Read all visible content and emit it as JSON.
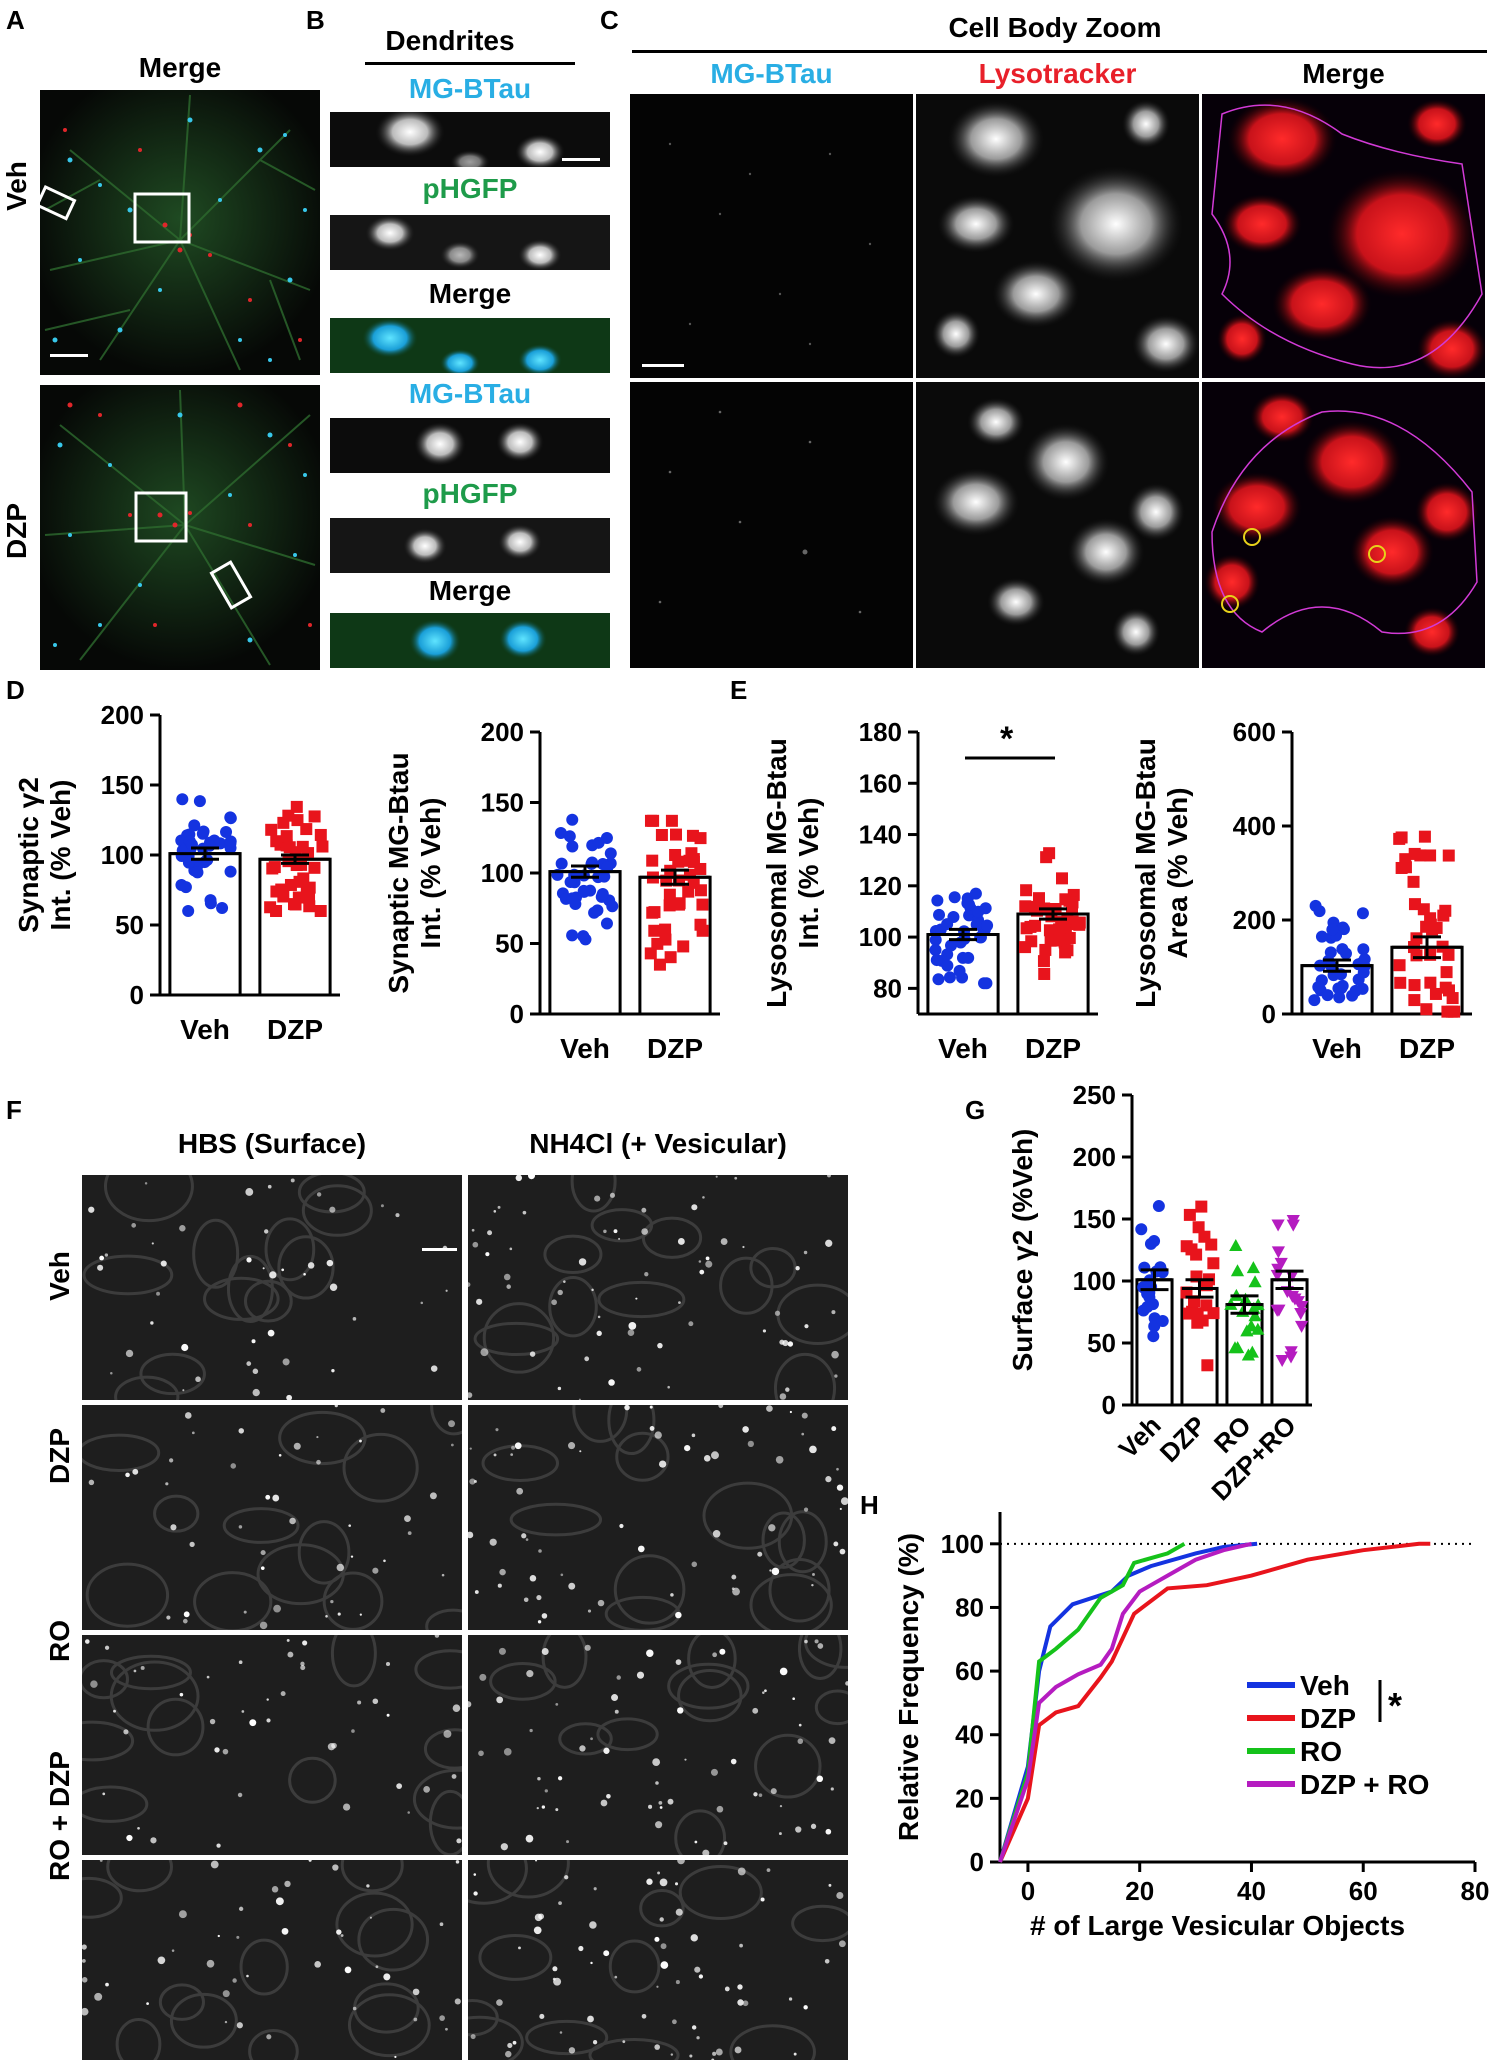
{
  "panel_labels": {
    "A": "A",
    "B": "B",
    "C": "C",
    "D": "D",
    "E": "E",
    "F": "F",
    "G": "G",
    "H": "H"
  },
  "panel_a": {
    "title": "Merge",
    "rows": [
      "Veh",
      "DZP"
    ]
  },
  "panel_b": {
    "title": "Dendrites",
    "channels": [
      "MG-BTau",
      "pHGFP",
      "Merge",
      "MG-BTau",
      "pHGFP",
      "Merge"
    ]
  },
  "panel_c": {
    "title": "Cell Body Zoom",
    "channels": [
      "MG-BTau",
      "Lysotracker",
      "Merge"
    ]
  },
  "panel_f": {
    "columns": [
      "HBS (Surface)",
      "NH4Cl (+ Vesicular)"
    ],
    "rows": [
      "Veh",
      "DZP",
      "RO",
      "RO + DZP"
    ]
  },
  "significance": {
    "e": "*",
    "h_star": "*"
  },
  "chart_data": [
    {
      "id": "D1",
      "type": "bar",
      "categories": [
        "Veh",
        "DZP"
      ],
      "values": [
        101,
        97
      ],
      "sem": [
        4,
        3
      ],
      "ylabel_lines": [
        "Synaptic γ2",
        "Int. (% Veh)"
      ],
      "ylim": [
        0,
        200
      ],
      "yticks": [
        "0",
        "50",
        "100",
        "150",
        "200"
      ],
      "colors": [
        "#1433e0",
        "#e8141c"
      ],
      "marker": [
        "circle",
        "square"
      ]
    },
    {
      "id": "D2",
      "type": "bar",
      "categories": [
        "Veh",
        "DZP"
      ],
      "values": [
        101,
        97
      ],
      "sem": [
        4,
        5
      ],
      "ylabel_lines": [
        "Synaptic MG-Btau",
        "Int. (% Veh)"
      ],
      "ylim": [
        0,
        200
      ],
      "yticks": [
        "0",
        "50",
        "100",
        "150",
        "200"
      ],
      "colors": [
        "#1433e0",
        "#e8141c"
      ],
      "marker": [
        "circle",
        "square"
      ]
    },
    {
      "id": "E1",
      "type": "bar",
      "categories": [
        "Veh",
        "DZP"
      ],
      "values": [
        101,
        109
      ],
      "sem": [
        2,
        2
      ],
      "ylabel_lines": [
        "Lysosomal MG-Btau",
        "Int. (% Veh)"
      ],
      "ylim": [
        70,
        180
      ],
      "yticks": [
        "80",
        "100",
        "120",
        "140",
        "160",
        "180"
      ],
      "colors": [
        "#1433e0",
        "#e8141c"
      ],
      "marker": [
        "circle",
        "square"
      ]
    },
    {
      "id": "E2",
      "type": "bar",
      "categories": [
        "Veh",
        "DZP"
      ],
      "values": [
        103,
        142
      ],
      "sem": [
        12,
        22
      ],
      "ylabel_lines": [
        "Lysosomal MG-Btau",
        "Area (% Veh)"
      ],
      "ylim": [
        0,
        600
      ],
      "yticks": [
        "0",
        "200",
        "400",
        "600"
      ],
      "colors": [
        "#1433e0",
        "#e8141c"
      ],
      "marker": [
        "circle",
        "square"
      ]
    },
    {
      "id": "G",
      "type": "bar",
      "categories": [
        "Veh",
        "DZP",
        "RO",
        "DZP+RO"
      ],
      "values": [
        101,
        94,
        81,
        101
      ],
      "sem": [
        8,
        7,
        7,
        7
      ],
      "ylabel_lines": [
        "Surface γ2 (%Veh)"
      ],
      "ylim": [
        0,
        250
      ],
      "yticks": [
        "0",
        "50",
        "100",
        "150",
        "200",
        "250"
      ],
      "colors": [
        "#1433e0",
        "#e8141c",
        "#15c21a",
        "#b51cc0"
      ],
      "marker": [
        "circle",
        "square",
        "triangle-up",
        "triangle-down"
      ]
    },
    {
      "id": "H",
      "type": "line",
      "xlabel": "# of Large Vesicular Objects",
      "ylabel": "Relative Frequency (%)",
      "xlim": [
        -5,
        80
      ],
      "ylim": [
        0,
        110
      ],
      "xticks": [
        "0",
        "20",
        "40",
        "60",
        "80"
      ],
      "yticks": [
        "0",
        "20",
        "40",
        "60",
        "80",
        "100"
      ],
      "series": [
        {
          "name": "Veh",
          "color": "#1433e0",
          "x": [
            -5,
            0,
            2,
            4,
            8,
            15,
            18,
            22,
            30,
            35,
            41
          ],
          "y": [
            0,
            30,
            60,
            74,
            81,
            85,
            90,
            93,
            97,
            99,
            100
          ]
        },
        {
          "name": "DZP",
          "color": "#e8141c",
          "x": [
            -5,
            0,
            2,
            5,
            9,
            13,
            15,
            19,
            25,
            32,
            40,
            50,
            60,
            70,
            72
          ],
          "y": [
            0,
            20,
            43,
            47,
            49,
            58,
            63,
            78,
            86,
            87,
            90,
            95,
            98,
            100,
            100
          ]
        },
        {
          "name": "RO",
          "color": "#15c21a",
          "x": [
            -5,
            0,
            2,
            5,
            9,
            13,
            17,
            19,
            25,
            28
          ],
          "y": [
            0,
            28,
            63,
            67,
            73,
            83,
            87,
            94,
            97,
            100
          ]
        },
        {
          "name": "DZP + RO",
          "color": "#b51cc0",
          "x": [
            -5,
            0,
            2,
            5,
            9,
            13,
            15,
            17,
            20,
            25,
            30,
            35,
            40
          ],
          "y": [
            0,
            26,
            50,
            55,
            59,
            62,
            67,
            78,
            85,
            90,
            95,
            98,
            100
          ]
        }
      ]
    }
  ]
}
